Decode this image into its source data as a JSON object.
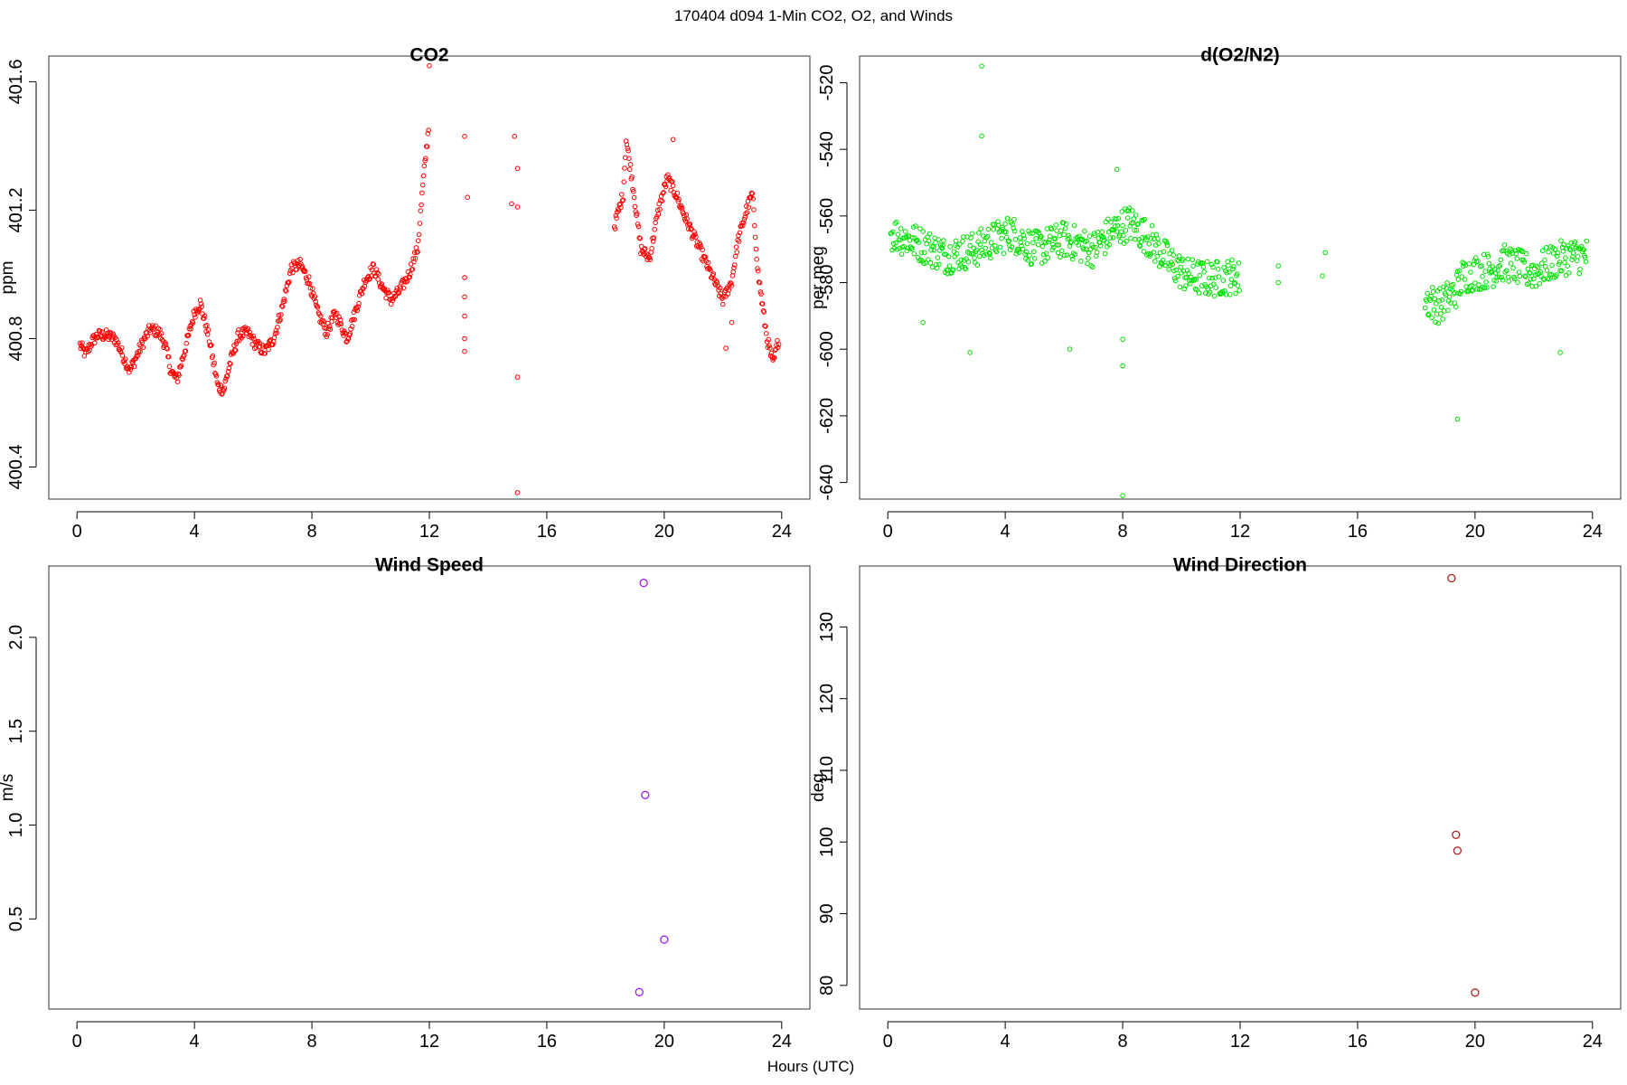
{
  "figure": {
    "title": "170404   d094   1-Min CO2, O2, and Winds",
    "xlabel": "Hours (UTC)"
  },
  "chart_data": [
    {
      "type": "scatter",
      "title": "CO2",
      "xlabel": "",
      "ylabel": "ppm",
      "xlim": [
        -0.96,
        24.96
      ],
      "ylim": [
        400.3,
        401.68
      ],
      "xticks": [
        0,
        4,
        8,
        12,
        16,
        20,
        24
      ],
      "yticks": [
        400.4,
        400.8,
        401.2,
        401.6
      ],
      "ytick_labels": [
        "400.4",
        "400.8",
        "401.2",
        "401.6"
      ],
      "color": "#ff0000",
      "grid": false,
      "points_generated_from_trace": true,
      "trace": [
        [
          0.1,
          400.78
        ],
        [
          0.3,
          400.75
        ],
        [
          0.5,
          400.79
        ],
        [
          0.7,
          400.81
        ],
        [
          1.0,
          400.81
        ],
        [
          1.3,
          400.8
        ],
        [
          1.5,
          400.76
        ],
        [
          1.8,
          400.7
        ],
        [
          2.0,
          400.74
        ],
        [
          2.3,
          400.8
        ],
        [
          2.5,
          400.83
        ],
        [
          2.8,
          400.82
        ],
        [
          3.0,
          400.78
        ],
        [
          3.2,
          400.7
        ],
        [
          3.4,
          400.67
        ],
        [
          3.6,
          400.74
        ],
        [
          4.0,
          400.88
        ],
        [
          4.2,
          400.91
        ],
        [
          4.5,
          400.8
        ],
        [
          4.8,
          400.65
        ],
        [
          5.0,
          400.64
        ],
        [
          5.2,
          400.72
        ],
        [
          5.5,
          400.81
        ],
        [
          5.8,
          400.82
        ],
        [
          6.1,
          400.78
        ],
        [
          6.4,
          400.76
        ],
        [
          6.7,
          400.8
        ],
        [
          7.0,
          400.9
        ],
        [
          7.3,
          401.02
        ],
        [
          7.6,
          401.03
        ],
        [
          7.9,
          400.98
        ],
        [
          8.2,
          400.88
        ],
        [
          8.5,
          400.82
        ],
        [
          8.8,
          400.88
        ],
        [
          9.2,
          400.8
        ],
        [
          9.5,
          400.89
        ],
        [
          9.8,
          400.98
        ],
        [
          10.1,
          401.02
        ],
        [
          10.4,
          400.96
        ],
        [
          10.7,
          400.92
        ],
        [
          11.0,
          400.95
        ],
        [
          11.3,
          401.0
        ],
        [
          11.6,
          401.08
        ],
        [
          11.8,
          401.3
        ],
        [
          12.0,
          401.48
        ]
      ],
      "gaps": [
        [
          12.1,
          18.3
        ]
      ],
      "trace2": [
        [
          18.3,
          401.15
        ],
        [
          18.6,
          401.25
        ],
        [
          18.7,
          401.42
        ],
        [
          18.9,
          401.3
        ],
        [
          19.2,
          401.08
        ],
        [
          19.5,
          401.05
        ],
        [
          19.8,
          401.2
        ],
        [
          20.1,
          401.3
        ],
        [
          20.4,
          401.25
        ],
        [
          20.7,
          401.18
        ],
        [
          22.0,
          400.92
        ],
        [
          22.3,
          400.98
        ],
        [
          22.5,
          401.1
        ],
        [
          22.8,
          401.2
        ],
        [
          23.0,
          401.25
        ],
        [
          23.2,
          401.0
        ],
        [
          23.5,
          400.8
        ],
        [
          23.7,
          400.72
        ],
        [
          23.9,
          400.8
        ]
      ],
      "outliers": [
        [
          13.2,
          401.43
        ],
        [
          13.3,
          401.24
        ],
        [
          13.2,
          400.99
        ],
        [
          13.2,
          400.93
        ],
        [
          13.2,
          400.87
        ],
        [
          13.2,
          400.8
        ],
        [
          13.2,
          400.76
        ],
        [
          14.8,
          401.22
        ],
        [
          14.9,
          401.43
        ],
        [
          15.0,
          401.33
        ],
        [
          15.0,
          401.21
        ],
        [
          15.0,
          400.68
        ],
        [
          15.0,
          400.32
        ],
        [
          20.3,
          401.42
        ],
        [
          22.1,
          400.77
        ],
        [
          22.3,
          400.85
        ],
        [
          12.0,
          401.65
        ]
      ]
    },
    {
      "type": "scatter",
      "title": "d(O2/N2)",
      "xlabel": "",
      "ylabel": "per meg",
      "xlim": [
        -0.96,
        24.96
      ],
      "ylim": [
        -645,
        -512
      ],
      "xticks": [
        0,
        4,
        8,
        12,
        16,
        20,
        24
      ],
      "yticks": [
        -520,
        -540,
        -560,
        -580,
        -600,
        -620,
        -640
      ],
      "ytick_labels": [
        "-520",
        "-540",
        "-560",
        "-580",
        "-600",
        "-620",
        "-640"
      ],
      "color": "#00e000",
      "grid": false,
      "points_generated_from_trace": true,
      "trace": [
        [
          0.1,
          -565
        ],
        [
          1.0,
          -568
        ],
        [
          2.0,
          -572
        ],
        [
          3.0,
          -570
        ],
        [
          3.4,
          -568
        ],
        [
          4.2,
          -565
        ],
        [
          5.0,
          -570
        ],
        [
          6.0,
          -567
        ],
        [
          7.0,
          -570
        ],
        [
          7.6,
          -565
        ],
        [
          8.2,
          -562
        ],
        [
          8.8,
          -566
        ],
        [
          9.6,
          -574
        ],
        [
          10.2,
          -578
        ],
        [
          11.0,
          -579
        ],
        [
          11.8,
          -578
        ],
        [
          12.0,
          -579
        ]
      ],
      "trace2": [
        [
          18.3,
          -585
        ],
        [
          18.8,
          -587
        ],
        [
          19.3,
          -583
        ],
        [
          19.6,
          -578
        ],
        [
          20.0,
          -577
        ],
        [
          20.6,
          -576
        ],
        [
          21.0,
          -574
        ],
        [
          22.0,
          -577
        ],
        [
          22.6,
          -574
        ],
        [
          23.2,
          -572
        ],
        [
          23.8,
          -572
        ]
      ],
      "outliers": [
        [
          13.3,
          -575
        ],
        [
          13.3,
          -580
        ],
        [
          14.8,
          -578
        ],
        [
          14.9,
          -571
        ],
        [
          3.2,
          -515
        ],
        [
          3.2,
          -536
        ],
        [
          2.8,
          -601
        ],
        [
          6.2,
          -600
        ],
        [
          8.0,
          -597
        ],
        [
          8.0,
          -605
        ],
        [
          8.0,
          -644
        ],
        [
          19.4,
          -621
        ],
        [
          22.9,
          -601
        ],
        [
          1.2,
          -592
        ],
        [
          7.8,
          -546
        ]
      ]
    },
    {
      "type": "scatter",
      "title": "Wind Speed",
      "xlabel": "",
      "ylabel": "m/s",
      "xlim": [
        -0.96,
        24.96
      ],
      "ylim": [
        0.02,
        2.38
      ],
      "xticks": [
        0,
        4,
        8,
        12,
        16,
        20,
        24
      ],
      "yticks": [
        0.5,
        1.0,
        1.5,
        2.0
      ],
      "ytick_labels": [
        "0.5",
        "1.0",
        "1.5",
        "2.0"
      ],
      "color": "#a020f0",
      "grid": false,
      "points": [
        [
          19.3,
          2.29
        ],
        [
          19.35,
          1.16
        ],
        [
          20.0,
          0.39
        ],
        [
          19.15,
          0.11
        ]
      ]
    },
    {
      "type": "scatter",
      "title": "Wind Direction",
      "xlabel": "",
      "ylabel": "deg",
      "xlim": [
        -0.96,
        24.96
      ],
      "ylim": [
        76.7,
        138.5
      ],
      "xticks": [
        0,
        4,
        8,
        12,
        16,
        20,
        24
      ],
      "yticks": [
        80,
        90,
        100,
        110,
        120,
        130
      ],
      "ytick_labels": [
        "80",
        "90",
        "100",
        "110",
        "120",
        "130"
      ],
      "color": "#b22222",
      "grid": false,
      "points": [
        [
          19.2,
          136.8
        ],
        [
          19.35,
          101.0
        ],
        [
          19.4,
          98.8
        ],
        [
          20.0,
          79.0
        ]
      ]
    }
  ]
}
